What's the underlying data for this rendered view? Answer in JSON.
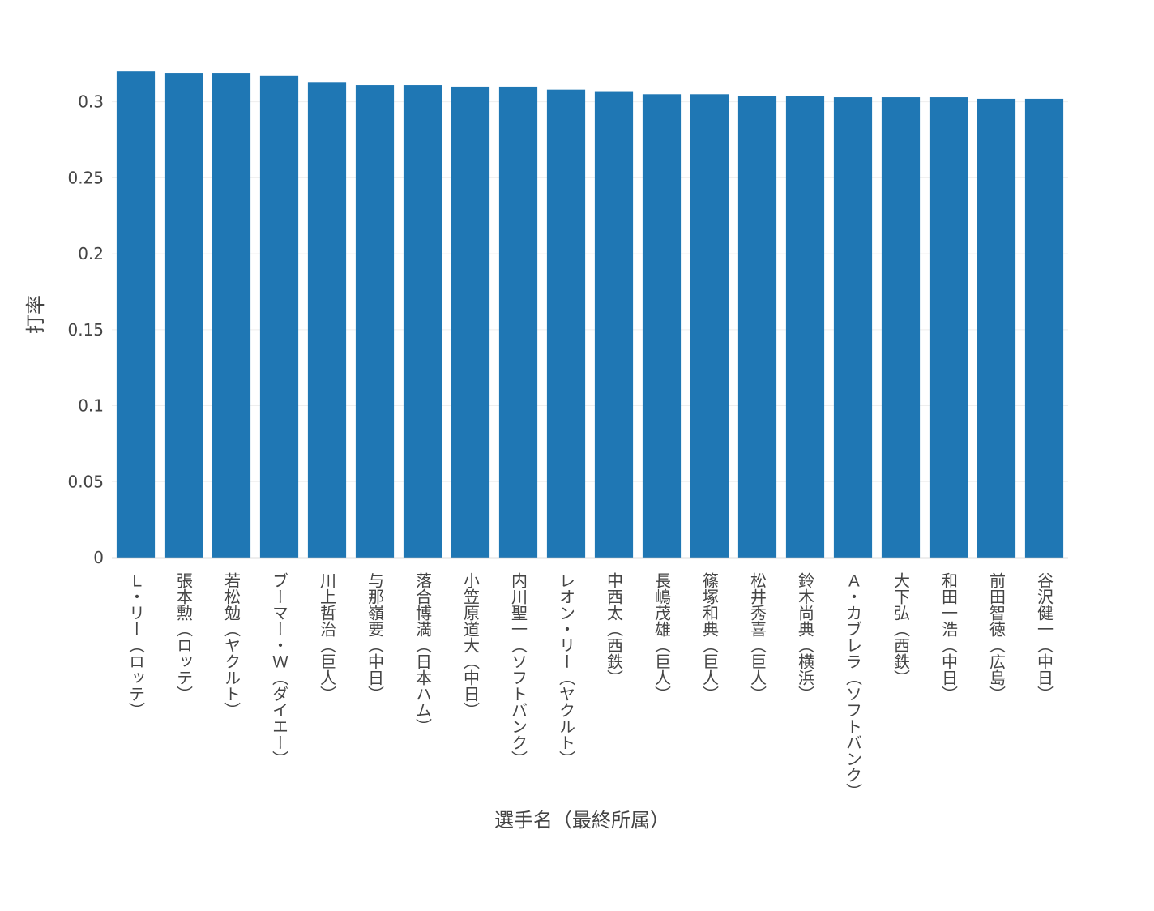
{
  "chart_data": {
    "type": "bar",
    "xlabel": "選手名（最終所属）",
    "ylabel": "打率",
    "ylim": [
      0,
      0.3265
    ],
    "yticks": [
      0,
      0.05,
      0.1,
      0.15,
      0.2,
      0.25,
      0.3
    ],
    "ytick_labels": [
      "0",
      "0.05",
      "0.1",
      "0.15",
      "0.2",
      "0.25",
      "0.3"
    ],
    "grid": true,
    "bar_color": "#1f77b4",
    "categories": [
      "Ｌ・リー（ロッテ）",
      "張本勲（ロッテ）",
      "若松勉（ヤクルト）",
      "ブーマー・Ｗ（ダイエー）",
      "川上哲治（巨人）",
      "与那嶺要（中日）",
      "落合博満（日本ハム）",
      "小笠原道大（中日）",
      "内川聖一（ソフトバンク）",
      "レオン・リー（ヤクルト）",
      "中西太（西鉄）",
      "長嶋茂雄（巨人）",
      "篠塚和典（巨人）",
      "松井秀喜（巨人）",
      "鈴木尚典（横浜）",
      "Ａ・カブレラ（ソフトバンク）",
      "大下弘（西鉄）",
      "和田一浩（中日）",
      "前田智徳（広島）",
      "谷沢健一（中日）"
    ],
    "values": [
      0.32,
      0.319,
      0.319,
      0.317,
      0.313,
      0.311,
      0.311,
      0.31,
      0.31,
      0.308,
      0.307,
      0.305,
      0.305,
      0.304,
      0.304,
      0.303,
      0.303,
      0.303,
      0.302,
      0.302
    ]
  }
}
